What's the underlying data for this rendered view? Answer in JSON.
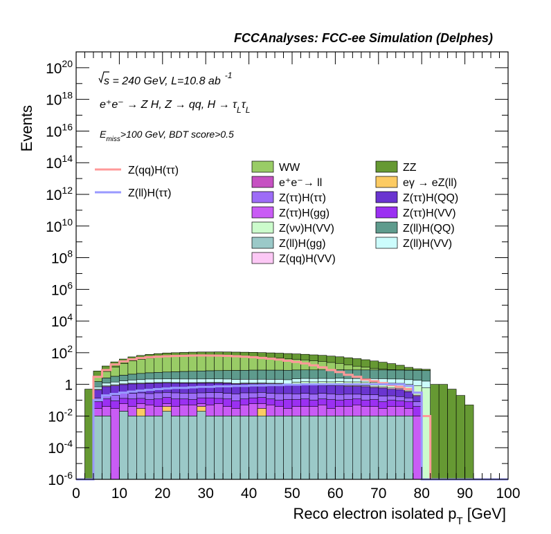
{
  "header": "FCCAnalyses: FCC-ee Simulation (Delphes)",
  "annotations": {
    "energy_pre": "s",
    "energy_rest": " = 240 GeV, L=10.8 ab",
    "energy_exp": "-1",
    "process_text": "e⁺e⁻ → Z H, Z → qq, H → τ",
    "process_sub": "L",
    "process_tau": "τ",
    "selection_e": "E",
    "selection_sub": "miss",
    "selection_rest": ">100 GeV, BDT score>0.5"
  },
  "chart_data": {
    "type": "bar",
    "stacked": true,
    "log_y": true,
    "xlabel": "Reco electron isolated p",
    "xlabel_sub": "T",
    "xlabel_unit": " [GeV]",
    "ylabel": "Events",
    "xlim": [
      0,
      100
    ],
    "ylim": [
      1e-06,
      1e+21
    ],
    "x_ticks": [
      0,
      10,
      20,
      30,
      40,
      50,
      60,
      70,
      80,
      90,
      100
    ],
    "y_tick_exponents": [
      -6,
      -4,
      -2,
      0,
      2,
      4,
      6,
      8,
      10,
      12,
      14,
      16,
      18,
      20
    ],
    "bin_width": 2,
    "bins": [
      0,
      2,
      4,
      6,
      8,
      10,
      12,
      14,
      16,
      18,
      20,
      22,
      24,
      26,
      28,
      30,
      32,
      34,
      36,
      38,
      40,
      42,
      44,
      46,
      48,
      50,
      52,
      54,
      56,
      58,
      60,
      62,
      64,
      66,
      68,
      70,
      72,
      74,
      76,
      78,
      80,
      82,
      84,
      86,
      88,
      90,
      92,
      94,
      96,
      98
    ],
    "grid": false,
    "legend_position": "top",
    "stack": [
      {
        "name": "Z(ll)H(gg)",
        "color": "#9bc9c8",
        "values": [
          0,
          0,
          0.01,
          0.01,
          0,
          0.02,
          0.01,
          0.01,
          0.01,
          0.01,
          0.02,
          0.01,
          0.01,
          0.01,
          0.02,
          0.01,
          0.01,
          0.01,
          0.01,
          0.01,
          0.01,
          0.01,
          0.01,
          0.01,
          0.01,
          0.01,
          0.01,
          0.01,
          0.01,
          0.01,
          0.01,
          0.01,
          0.01,
          0.01,
          0.01,
          0.01,
          0.01,
          0.01,
          0.01,
          0,
          0,
          0,
          0,
          0,
          0,
          0,
          0,
          0,
          0,
          0
        ]
      },
      {
        "name": "eγ → eZ(ll)",
        "color": "#fccb63",
        "values": [
          0,
          0,
          0,
          0,
          0,
          0,
          0,
          0.02,
          0,
          0,
          0.02,
          0,
          0,
          0,
          0.02,
          0,
          0,
          0,
          0,
          0,
          0,
          0.02,
          0,
          0,
          0,
          0,
          0,
          0,
          0,
          0,
          0,
          0,
          0,
          0,
          0,
          0,
          0,
          0,
          0,
          0,
          0,
          0,
          0,
          0,
          0,
          0,
          0,
          0,
          0,
          0
        ]
      },
      {
        "name": "Z(ττ)H(gg)",
        "color": "#c95cf5",
        "values": [
          0,
          0,
          0.02,
          0.03,
          0.03,
          0.04,
          0.03,
          0.03,
          0.04,
          0.03,
          0.02,
          0.03,
          0.04,
          0.04,
          0.02,
          0.04,
          0.05,
          0.03,
          0.02,
          0.04,
          0.05,
          0.03,
          0.04,
          0.03,
          0.02,
          0.03,
          0.03,
          0.03,
          0.04,
          0.02,
          0.03,
          0.03,
          0.04,
          0.03,
          0.03,
          0.02,
          0.03,
          0.03,
          0.02,
          0.01,
          0,
          0,
          0,
          0,
          0,
          0,
          0,
          0,
          0,
          0
        ]
      },
      {
        "name": "Z(ττ)H(VV)",
        "color": "#9b30f2",
        "values": [
          0,
          0,
          0.05,
          0.08,
          0.06,
          0.07,
          0.08,
          0.07,
          0.06,
          0.08,
          0.09,
          0.08,
          0.07,
          0.06,
          0.08,
          0.09,
          0.07,
          0.08,
          0.06,
          0.07,
          0.08,
          0.09,
          0.07,
          0.06,
          0.08,
          0.07,
          0.08,
          0.06,
          0.07,
          0.08,
          0.06,
          0.07,
          0.07,
          0.06,
          0.07,
          0.05,
          0.06,
          0.05,
          0.05,
          0.03,
          0,
          0,
          0,
          0,
          0,
          0,
          0,
          0,
          0,
          0
        ]
      },
      {
        "name": "Z(ττ)H(ττ)",
        "color": "#9d6cf7",
        "values": [
          0,
          0,
          0.06,
          0.1,
          0.12,
          0.14,
          0.15,
          0.16,
          0.15,
          0.17,
          0.16,
          0.17,
          0.16,
          0.17,
          0.15,
          0.16,
          0.17,
          0.15,
          0.16,
          0.17,
          0.15,
          0.16,
          0.15,
          0.16,
          0.15,
          0.14,
          0.15,
          0.14,
          0.15,
          0.14,
          0.13,
          0.13,
          0.12,
          0.12,
          0.11,
          0.1,
          0.09,
          0.08,
          0.06,
          0.04,
          0,
          0,
          0,
          0,
          0,
          0,
          0,
          0,
          0,
          0
        ]
      },
      {
        "name": "Z(ττ)H(QQ)",
        "color": "#6a35d0",
        "values": [
          0,
          0,
          0.3,
          0.5,
          0.6,
          0.7,
          0.8,
          0.8,
          0.9,
          0.9,
          0.9,
          0.9,
          0.9,
          0.9,
          0.9,
          0.9,
          0.9,
          0.9,
          0.8,
          0.8,
          0.8,
          0.8,
          0.8,
          0.8,
          0.7,
          0.7,
          0.7,
          0.7,
          0.6,
          0.6,
          0.6,
          0.5,
          0.5,
          0.5,
          0.4,
          0.4,
          0.3,
          0.3,
          0.2,
          0.1,
          0,
          0,
          0,
          0,
          0,
          0,
          0,
          0,
          0,
          0
        ]
      },
      {
        "name": "Z(qq)H(VV)",
        "color": "#fcc8f5",
        "values": [
          0,
          0,
          0.05,
          0.08,
          0.1,
          0.1,
          0.1,
          0.1,
          0.1,
          0.1,
          0.1,
          0.1,
          0.1,
          0.1,
          0.1,
          0.1,
          0.1,
          0.1,
          0.1,
          0.1,
          0.1,
          0.1,
          0.1,
          0.1,
          0.1,
          0.1,
          0.1,
          0.1,
          0.1,
          0.1,
          0.1,
          0.1,
          0.1,
          0.1,
          0.1,
          0.1,
          0.1,
          0.1,
          0.05,
          0.03,
          0,
          0,
          0,
          0,
          0,
          0,
          0,
          0,
          0,
          0
        ]
      },
      {
        "name": "Z(νν)H(VV)",
        "color": "#ccfccc",
        "values": [
          0,
          0,
          0,
          0,
          0,
          0,
          0,
          0,
          0,
          0,
          0,
          0,
          0,
          0,
          0,
          0,
          0,
          0,
          0,
          0,
          0,
          0,
          0,
          0,
          0,
          0.3,
          0.4,
          0.4,
          0.5,
          0.5,
          0.6,
          0.6,
          0.6,
          0.6,
          0.6,
          0.6,
          0.6,
          0.6,
          0.6,
          0.6,
          0.6,
          0,
          0,
          0,
          0,
          0,
          0,
          0,
          0,
          0
        ]
      },
      {
        "name": "Z(ll)H(VV)",
        "color": "#ccfcfc",
        "values": [
          0,
          0,
          0.2,
          0.4,
          0.5,
          0.6,
          0.7,
          0.8,
          0.9,
          0.9,
          0.9,
          0.9,
          0.9,
          0.9,
          0.9,
          0.9,
          0.9,
          0.9,
          0.9,
          0.9,
          0.9,
          0.9,
          0.9,
          0.9,
          0.9,
          0.9,
          0.9,
          0.9,
          0.9,
          0.9,
          0.9,
          0.9,
          0.9,
          0.9,
          1,
          1,
          1,
          1,
          1,
          1,
          1,
          0,
          0,
          0,
          0,
          0,
          0,
          0,
          0,
          0
        ]
      },
      {
        "name": "Z(ll)H(QQ)",
        "color": "#5e9b8d",
        "values": [
          0,
          0,
          0.8,
          1.3,
          1.8,
          2.1,
          2.5,
          2.9,
          3.2,
          3.5,
          3.8,
          4,
          4.3,
          4.5,
          4.8,
          5,
          5.2,
          5.3,
          5.5,
          5.6,
          5.8,
          5.8,
          5.8,
          5.8,
          5.8,
          5.8,
          5.8,
          5.8,
          5.8,
          5.8,
          5.8,
          5.8,
          5.8,
          5.8,
          5.8,
          5.8,
          5.8,
          5.8,
          5.8,
          5.8,
          5.8,
          0,
          0,
          0,
          0,
          0,
          0,
          0,
          0,
          0
        ]
      },
      {
        "name": "e⁺e⁻→ ll",
        "color": "#c651c2",
        "values": [
          0,
          0,
          0,
          0,
          0,
          0,
          0,
          0,
          0,
          0,
          0,
          0,
          0,
          0,
          0,
          0,
          0,
          0,
          0,
          0,
          0,
          0,
          0,
          0,
          0,
          0,
          0,
          0,
          0,
          0,
          0,
          0,
          0,
          0,
          0,
          0,
          0,
          0,
          0,
          0,
          0,
          0,
          0,
          0,
          0,
          0,
          0,
          0,
          0,
          0
        ]
      },
      {
        "name": "WW",
        "color": "#99cc66",
        "values": [
          0,
          0,
          1.5,
          4,
          9,
          17,
          26,
          33,
          40,
          45,
          50,
          52,
          54,
          56,
          56,
          54,
          54,
          52,
          50,
          48,
          46,
          43,
          40,
          37,
          33,
          30,
          27,
          23,
          20,
          16,
          13,
          9,
          6,
          4,
          2,
          1,
          0.5,
          0.2,
          0.1,
          0.05,
          0.05,
          0,
          0,
          0,
          0,
          0,
          0,
          0,
          0,
          0
        ]
      },
      {
        "name": "ZZ",
        "color": "#669933",
        "values": [
          0,
          0.5,
          4,
          8,
          14,
          19,
          24,
          29,
          33,
          37,
          40,
          42,
          44,
          46,
          48,
          50,
          51,
          52,
          52,
          52,
          52,
          51,
          50,
          49,
          48,
          46,
          44,
          42,
          40,
          37,
          34,
          31,
          28,
          24,
          20,
          16,
          12,
          8,
          4,
          2,
          1.5,
          1,
          1,
          0.5,
          0.2,
          0.05,
          0,
          0,
          0,
          0
        ]
      }
    ],
    "lines": [
      {
        "name": "Z(qq)H(ττ)",
        "color": "#ff9999",
        "values": [
          0,
          0,
          3,
          8,
          18,
          28,
          38,
          46,
          52,
          56,
          60,
          62,
          64,
          66,
          67,
          66,
          65,
          63,
          60,
          56,
          52,
          47,
          42,
          37,
          31,
          26,
          21,
          16,
          12,
          8,
          6,
          4,
          3,
          2,
          1.6,
          1.2,
          0.9,
          0.7,
          0.5,
          0.3,
          0.01,
          0,
          0,
          0,
          0,
          0,
          0,
          0,
          0,
          0
        ]
      },
      {
        "name": "Z(ll)H(ττ)",
        "color": "#9999ff",
        "values": [
          0,
          0,
          0.1,
          0.2,
          0.25,
          0.3,
          0.35,
          0.4,
          0.45,
          0.5,
          0.55,
          0.6,
          0.6,
          0.65,
          0.7,
          0.7,
          0.75,
          0.75,
          0.8,
          0.8,
          0.85,
          0.85,
          0.9,
          0.9,
          0.95,
          0.95,
          1,
          1,
          1,
          1,
          1,
          1,
          1,
          1,
          1,
          1,
          1,
          1,
          0.8,
          0.3,
          0,
          0,
          0,
          0,
          0,
          0,
          0,
          0,
          0,
          0
        ]
      }
    ],
    "legend": {
      "left": [
        {
          "name": "Z(qq)H(ττ)",
          "kind": "line",
          "color": "#ff9999"
        },
        {
          "name": "Z(ll)H(ττ)",
          "kind": "line",
          "color": "#9999ff"
        }
      ],
      "col1": [
        {
          "name": "WW",
          "color": "#99cc66"
        },
        {
          "name": "e⁺e⁻→ ll",
          "color": "#c651c2"
        },
        {
          "name": "Z(ττ)H(ττ)",
          "color": "#9d6cf7"
        },
        {
          "name": "Z(ττ)H(gg)",
          "color": "#c95cf5"
        },
        {
          "name": "Z(νν)H(VV)",
          "color": "#ccfccc"
        },
        {
          "name": "Z(ll)H(gg)",
          "color": "#9bc9c8"
        },
        {
          "name": "Z(qq)H(VV)",
          "color": "#fcc8f5"
        }
      ],
      "col2": [
        {
          "name": "ZZ",
          "color": "#669933"
        },
        {
          "name": "eγ → eZ(ll)",
          "color": "#fccb63"
        },
        {
          "name": "Z(ττ)H(QQ)",
          "color": "#6a35d0"
        },
        {
          "name": "Z(ττ)H(VV)",
          "color": "#9b30f2"
        },
        {
          "name": "Z(ll)H(QQ)",
          "color": "#5e9b8d"
        },
        {
          "name": "Z(ll)H(VV)",
          "color": "#ccfcfc"
        }
      ]
    }
  }
}
